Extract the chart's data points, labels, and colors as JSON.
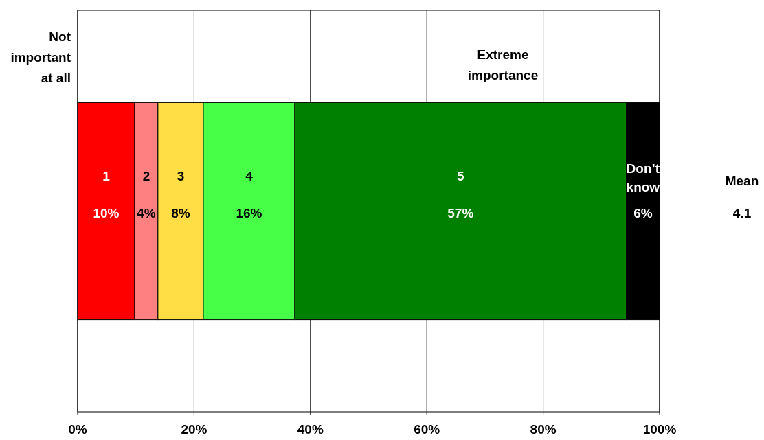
{
  "chart_data": {
    "type": "bar",
    "orientation": "horizontal",
    "stacked": true,
    "categories": [
      null
    ],
    "series": [
      {
        "name": "1",
        "color": "#ff0000",
        "values": [
          9.8
        ],
        "value_labels": [
          "10%"
        ]
      },
      {
        "name": "2",
        "color": "#ff8080",
        "values": [
          4.0
        ],
        "value_labels": [
          "4%"
        ]
      },
      {
        "name": "3",
        "color": "#ffdd44",
        "values": [
          7.8
        ],
        "value_labels": [
          "8%"
        ]
      },
      {
        "name": "4",
        "color": "#46ff46",
        "values": [
          15.7
        ],
        "value_labels": [
          "16%"
        ]
      },
      {
        "name": "5",
        "color": "#008000",
        "values": [
          57.0
        ],
        "value_labels": [
          "57%"
        ]
      },
      {
        "name": "Don’t know",
        "color": "#000000",
        "values": [
          5.7
        ],
        "value_labels": [
          "6%"
        ]
      }
    ],
    "xlim": [
      0,
      100
    ],
    "xticks": [
      {
        "value": 0,
        "label": "0%"
      },
      {
        "value": 20,
        "label": "20%"
      },
      {
        "value": 40,
        "label": "40%"
      },
      {
        "value": 60,
        "label": "60%"
      },
      {
        "value": 80,
        "label": "80%"
      },
      {
        "value": 100,
        "label": "100%"
      }
    ],
    "grid": "x",
    "annotations": [
      "Not important at all",
      "Extreme importance",
      "Mean",
      "4.1"
    ]
  }
}
